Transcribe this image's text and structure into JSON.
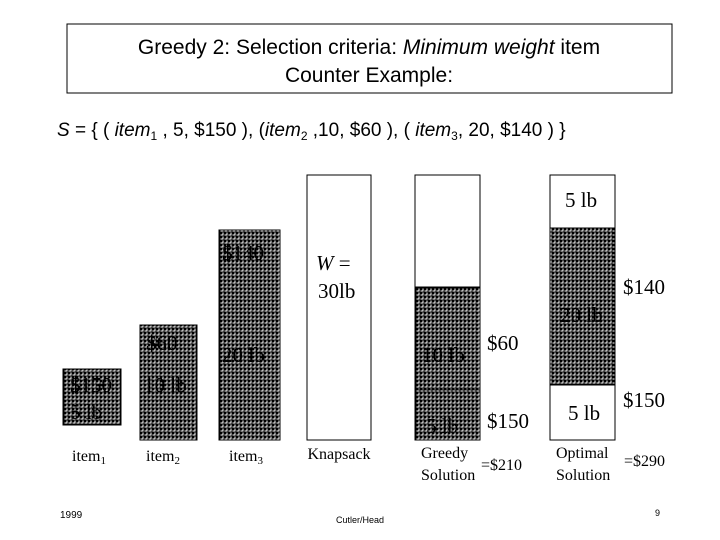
{
  "header": {
    "title_parts": [
      "Greedy 2: Selection criteria: ",
      "Minimum weight",
      " item"
    ],
    "subtitle": "Counter Example:"
  },
  "set_line": {
    "parts": [
      "S",
      " = { ( ",
      "item",
      "1",
      " , 5, $150 ), (",
      "item",
      "2",
      " ,10, $60 ), ( ",
      "item",
      "3",
      ", 20, $140 ) }"
    ]
  },
  "items": [
    {
      "name": "item",
      "sub": "1",
      "price": "$150",
      "weight": "5 lb"
    },
    {
      "name": "item",
      "sub": "2",
      "price": "$60",
      "weight": "10 lb"
    },
    {
      "name": "item",
      "sub": "3",
      "price": "$140",
      "weight": "20 lb"
    }
  ],
  "knapsack": {
    "capacity_var": "W",
    "capacity_eq": " =",
    "capacity": "30lb",
    "label": "Knapsack"
  },
  "greedy": {
    "weights": [
      "10 lb",
      "5 lb"
    ],
    "prices": [
      "$60",
      "$150"
    ],
    "label": [
      "Greedy",
      "Solution"
    ],
    "total": "=$210"
  },
  "optimal": {
    "weights": [
      "5 lb",
      "20 lb",
      "5 lb"
    ],
    "prices": [
      "$140",
      "$150"
    ],
    "label": [
      "Optimal",
      "Solution"
    ],
    "total": "=$290"
  },
  "footer": {
    "year": "1999",
    "author": "Cutler/Head",
    "page": "9"
  }
}
